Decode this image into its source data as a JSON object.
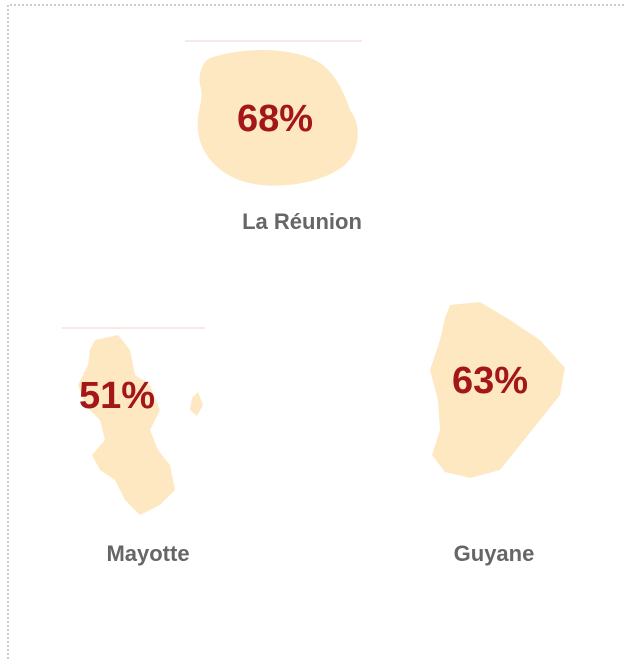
{
  "regions": [
    {
      "name": "La Réunion",
      "value": "68%"
    },
    {
      "name": "Mayotte",
      "value": "51%"
    },
    {
      "name": "Guyane",
      "value": "63%"
    }
  ]
}
